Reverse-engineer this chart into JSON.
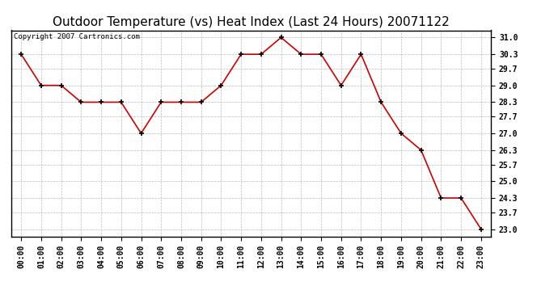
{
  "title": "Outdoor Temperature (vs) Heat Index (Last 24 Hours) 20071122",
  "copyright": "Copyright 2007 Cartronics.com",
  "x_labels": [
    "00:00",
    "01:00",
    "02:00",
    "03:00",
    "04:00",
    "05:00",
    "06:00",
    "07:00",
    "08:00",
    "09:00",
    "10:00",
    "11:00",
    "12:00",
    "13:00",
    "14:00",
    "15:00",
    "16:00",
    "17:00",
    "18:00",
    "19:00",
    "20:00",
    "21:00",
    "22:00",
    "23:00"
  ],
  "y_values": [
    30.3,
    29.0,
    29.0,
    28.3,
    28.3,
    28.3,
    27.0,
    28.3,
    28.3,
    28.3,
    29.0,
    30.3,
    30.3,
    31.0,
    30.3,
    30.3,
    29.0,
    30.3,
    28.3,
    27.0,
    26.3,
    24.3,
    24.3,
    23.0
  ],
  "y_ticks": [
    23.0,
    23.7,
    24.3,
    25.0,
    25.7,
    26.3,
    27.0,
    27.7,
    28.3,
    29.0,
    29.7,
    30.3,
    31.0
  ],
  "ylim": [
    22.7,
    31.3
  ],
  "line_color": "#cc0000",
  "marker": "+",
  "marker_size": 5,
  "background_color": "#ffffff",
  "grid_color": "#bbbbbb",
  "title_fontsize": 11,
  "tick_fontsize": 7,
  "copyright_fontsize": 6.5
}
